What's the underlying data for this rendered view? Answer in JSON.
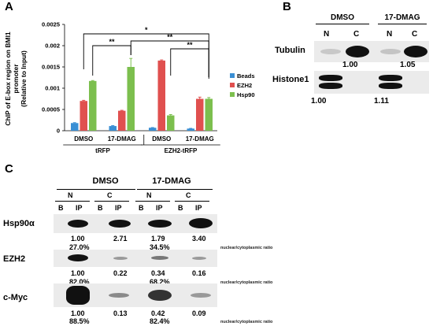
{
  "panels": {
    "a": "A",
    "b": "B",
    "c": "C"
  },
  "chart_data": {
    "type": "bar",
    "ylabel": "ChIP of E-box region on BMI1\npromoter\n(Relative to Input)",
    "ylim": [
      0,
      0.0025
    ],
    "yticks": [
      "0",
      "0.0005",
      "0.001",
      "0.0015",
      "0.002",
      "0.0025"
    ],
    "categories": [
      "DMSO",
      "17-DMAG",
      "DMSO",
      "17-DMAG"
    ],
    "groups": [
      {
        "label": "tRFP",
        "span": [
          0,
          1
        ]
      },
      {
        "label": "EZH2-tRFP",
        "span": [
          2,
          3
        ]
      }
    ],
    "series": [
      {
        "name": "Beads",
        "color": "#3a8fd4",
        "values": [
          0.00018,
          0.00011,
          7e-05,
          5e-05
        ]
      },
      {
        "name": "EZH2",
        "color": "#e0504f",
        "values": [
          0.0007,
          0.00047,
          0.00165,
          0.00075
        ]
      },
      {
        "name": "Hsp90",
        "color": "#7cbf4e",
        "values": [
          0.00117,
          0.0015,
          0.00036,
          0.00075
        ]
      }
    ],
    "errors": [
      [
        1e-05,
        1e-05,
        5e-06,
        5e-06
      ],
      [
        1.5e-05,
        1e-05,
        1.5e-05,
        4e-05
      ],
      [
        1e-05,
        0.0002,
        2e-05,
        3e-05
      ]
    ],
    "significance": [
      "**",
      "*",
      "**",
      "**"
    ],
    "legend_position": "right"
  },
  "panel_b": {
    "conditions": [
      "DMSO",
      "17-DMAG"
    ],
    "lanes": [
      "N",
      "C",
      "N",
      "C"
    ],
    "rows": [
      "Tubulin",
      "Histone1"
    ],
    "tubulin_values": [
      "1.00",
      "1.05"
    ],
    "histone_values": [
      "1.00",
      "1.11"
    ]
  },
  "panel_c": {
    "conditions": [
      "DMSO",
      "17-DMAG"
    ],
    "fractions": [
      "N",
      "C",
      "N",
      "C"
    ],
    "lanes": [
      "B",
      "IP",
      "B",
      "IP",
      "B",
      "IP",
      "B",
      "IP"
    ],
    "rows": [
      {
        "label": "Hsp90α",
        "values": [
          "1.00",
          "2.71",
          "1.79",
          "3.40"
        ],
        "ratios": [
          "27.0%",
          "34.5%"
        ]
      },
      {
        "label": "EZH2",
        "values": [
          "1.00",
          "0.22",
          "0.34",
          "0.16"
        ],
        "ratios": [
          "82.0%",
          "68.2%"
        ]
      },
      {
        "label": "c-Myc",
        "values": [
          "1.00",
          "0.13",
          "0.42",
          "0.09"
        ],
        "ratios": [
          "88.5%",
          "82.4%"
        ]
      }
    ],
    "ratio_note": "nuclear/cytoplasmic   ratio"
  }
}
